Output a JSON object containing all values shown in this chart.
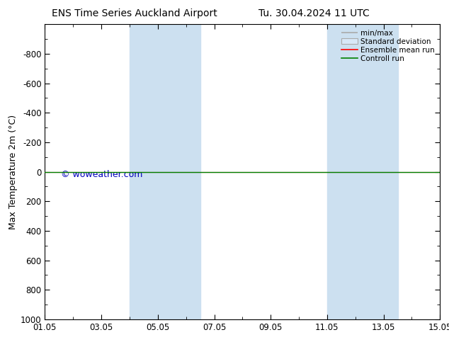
{
  "title_left": "ENS Time Series Auckland Airport",
  "title_right": "Tu. 30.04.2024 11 UTC",
  "ylabel": "Max Temperature 2m (°C)",
  "xtick_labels": [
    "01.05",
    "03.05",
    "05.05",
    "07.05",
    "09.05",
    "11.05",
    "13.05",
    "15.05"
  ],
  "xtick_positions": [
    0,
    2,
    4,
    6,
    8,
    10,
    12,
    14
  ],
  "ylim_bottom": -1000,
  "ylim_top": 1000,
  "ytick_positions": [
    -800,
    -600,
    -400,
    -200,
    0,
    200,
    400,
    600,
    800,
    1000
  ],
  "ytick_labels": [
    "-800",
    "-600",
    "-400",
    "-200",
    "0",
    "200",
    "400",
    "600",
    "800",
    "1000"
  ],
  "background_color": "#ffffff",
  "plot_bg_color": "#ffffff",
  "shaded_bands": [
    {
      "xmin": 3.0,
      "xmax": 5.5,
      "color": "#cce0f0"
    },
    {
      "xmin": 10.0,
      "xmax": 12.5,
      "color": "#cce0f0"
    }
  ],
  "flat_line_y": 0,
  "flat_line_color_red": "#ff0000",
  "flat_line_color_green": "#008000",
  "watermark_text": "© woweather.com",
  "watermark_color": "#0000bb",
  "watermark_fontsize": 9,
  "legend_entries": [
    "min/max",
    "Standard deviation",
    "Ensemble mean run",
    "Controll run"
  ],
  "legend_line_color": "#aaaaaa",
  "legend_fill_color": "#d8e8f8",
  "legend_red": "#ff0000",
  "legend_green": "#008000",
  "title_fontsize": 10,
  "axis_label_fontsize": 9,
  "tick_fontsize": 8.5
}
